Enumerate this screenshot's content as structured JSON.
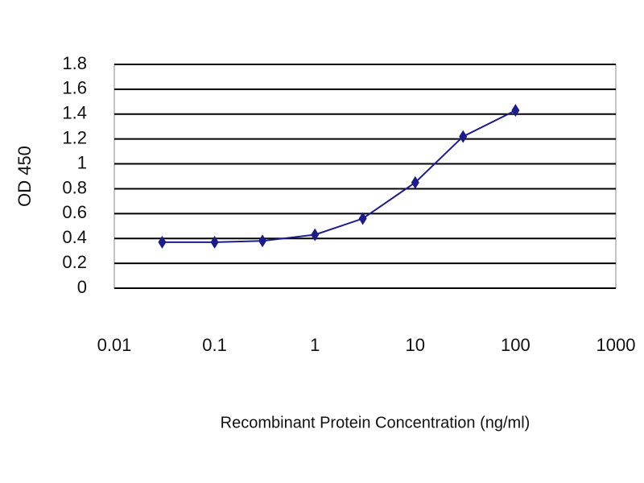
{
  "chart_data": {
    "type": "line",
    "x_label": "Recombinant Protein Concentration (ng/ml)",
    "y_label": "OD 450",
    "x": [
      0.03,
      0.1,
      0.3,
      1,
      3,
      10,
      30,
      100
    ],
    "series": [
      {
        "name": "OD 450",
        "color": "#1c1c8c",
        "values": [
          0.37,
          0.37,
          0.38,
          0.43,
          0.56,
          0.85,
          1.22,
          1.43
        ]
      }
    ],
    "xscale": "log",
    "xlim": [
      0.01,
      1000
    ],
    "xticks": [
      0.01,
      0.1,
      1,
      10,
      100,
      1000
    ],
    "ylim": [
      0,
      1.8
    ],
    "yticks": [
      0,
      0.2,
      0.4,
      0.6,
      0.8,
      1,
      1.2,
      1.4,
      1.6,
      1.8
    ],
    "grid": true,
    "legend": false
  }
}
